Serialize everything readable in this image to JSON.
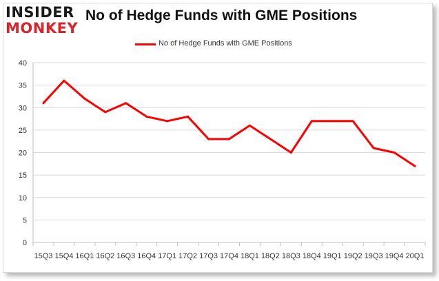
{
  "logo": {
    "line1": "INSIDER",
    "line2": "MONKEY"
  },
  "colors": {
    "series": "#ff0000",
    "logo_accent": "#d7262b"
  },
  "chart_data": {
    "type": "line",
    "title": "No of Hedge Funds with GME Positions",
    "xlabel": "",
    "ylabel": "",
    "ylim": [
      0,
      40
    ],
    "yticks": [
      0,
      5,
      10,
      15,
      20,
      25,
      30,
      35,
      40
    ],
    "grid": true,
    "legend_position": "top-center",
    "categories": [
      "15Q3",
      "15Q4",
      "16Q1",
      "16Q2",
      "16Q3",
      "16Q4",
      "17Q1",
      "17Q2",
      "17Q3",
      "17Q4",
      "18Q1",
      "18Q2",
      "18Q3",
      "18Q4",
      "19Q1",
      "19Q2",
      "19Q3",
      "19Q4",
      "20Q1"
    ],
    "x_tick_labels": [
      "15Q3",
      "15Q4",
      "16Q1",
      "16Q2",
      "16Q3",
      "16Q4",
      "17Q1",
      "17Q2",
      "17Q3",
      "17Q4",
      "18Q1",
      "18Q2",
      "18Q3",
      "18Q4",
      "19Q1",
      "19Q2",
      "19Q3",
      "19Q4",
      "20Q1"
    ],
    "series": [
      {
        "name": "No of Hedge Funds with GME Positions",
        "values": [
          31,
          36,
          32,
          29,
          31,
          28,
          27,
          28,
          23,
          23,
          26,
          23,
          20,
          27,
          27,
          27,
          21,
          20,
          17
        ]
      }
    ]
  }
}
